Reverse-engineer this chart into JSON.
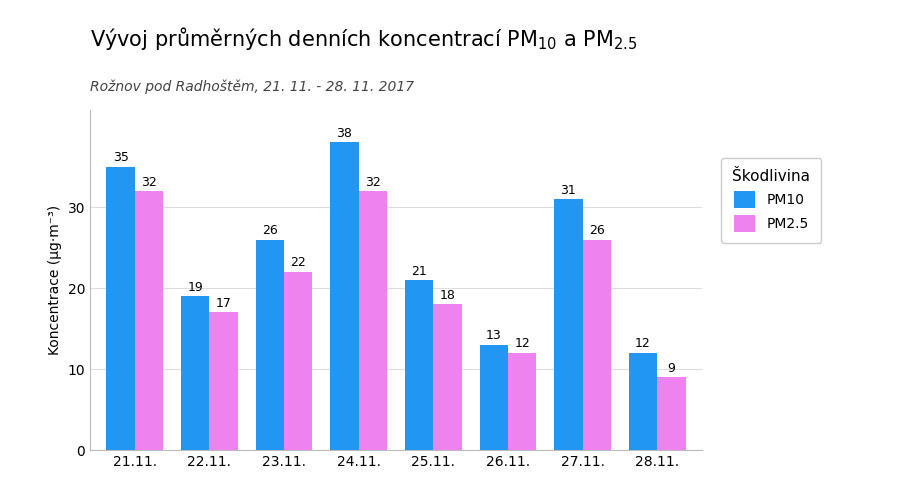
{
  "subtitle": "Rožnov pod Radhoštěm, 21. 11. - 28. 11. 2017",
  "ylabel": "Koncentrace (μg·m⁻³)",
  "categories": [
    "21.11.",
    "22.11.",
    "23.11.",
    "24.11.",
    "25.11.",
    "26.11.",
    "27.11.",
    "28.11."
  ],
  "pm10_values": [
    35,
    19,
    26,
    38,
    21,
    13,
    31,
    12
  ],
  "pm25_values": [
    32,
    17,
    22,
    32,
    18,
    12,
    26,
    9
  ],
  "pm10_color": "#2196F3",
  "pm25_color": "#EE82EE",
  "legend_title": "Škodlivina",
  "legend_pm10": "PM10",
  "legend_pm25": "PM2.5",
  "ylim": [
    0,
    42
  ],
  "yticks": [
    0,
    10,
    20,
    30
  ],
  "bar_width": 0.38,
  "title_fontsize": 15,
  "subtitle_fontsize": 10,
  "label_fontsize": 9,
  "tick_fontsize": 10,
  "ylabel_fontsize": 10,
  "background_color": "#ffffff",
  "plot_bg_color": "#ffffff",
  "grid_color": "#dddddd"
}
